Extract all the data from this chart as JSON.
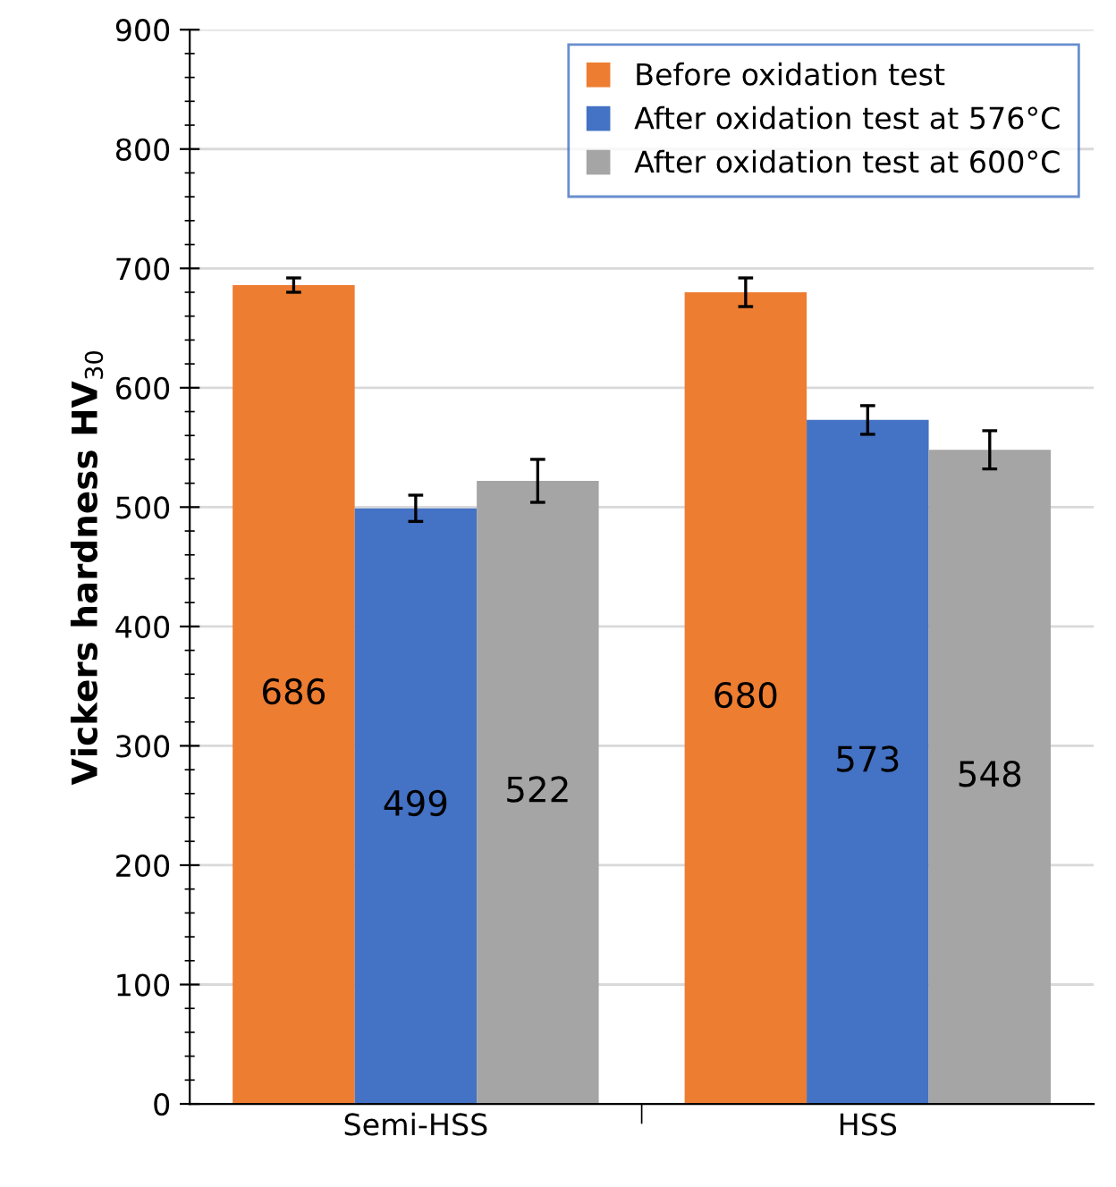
{
  "chart_data": {
    "type": "bar",
    "ylabel": "Vickers hardness HV$_{30}$",
    "categories": [
      "Semi-HSS",
      "HSS"
    ],
    "series": [
      {
        "name": "Before oxidation test",
        "color": "#ed7d31",
        "values": [
          686,
          680
        ],
        "errors": [
          6,
          12
        ]
      },
      {
        "name": "After oxidation test at 576°C",
        "color": "#4472c4",
        "values": [
          499,
          573
        ],
        "errors": [
          11,
          12
        ]
      },
      {
        "name": "After oxidation test at 600°C",
        "color": "#a5a5a5",
        "values": [
          522,
          548
        ],
        "errors": [
          18,
          16
        ]
      }
    ],
    "ylim": [
      0,
      900
    ],
    "yticks": [
      0,
      100,
      200,
      300,
      400,
      500,
      600,
      700,
      800,
      900
    ],
    "grid": "y",
    "legend": "top right",
    "data_labels": true
  }
}
